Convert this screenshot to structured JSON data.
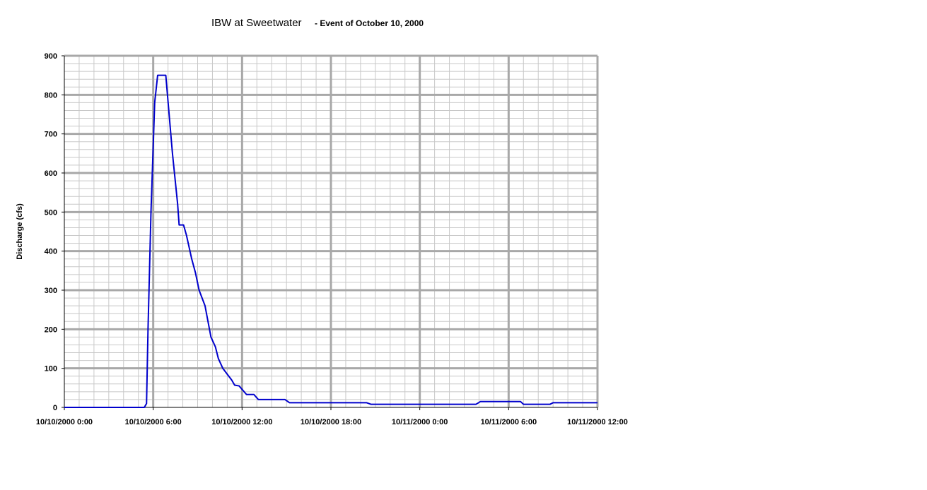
{
  "chart_data": {
    "type": "line",
    "title": "IBW at Sweetwater",
    "subtitle": "- Event of October 10, 2000",
    "xlabel": "",
    "ylabel": "Discharge (cfs)",
    "ylim": [
      0,
      900
    ],
    "y_ticks": [
      0,
      100,
      200,
      300,
      400,
      500,
      600,
      700,
      800,
      900
    ],
    "x_range_hours": [
      0,
      36
    ],
    "x_ticks": [
      {
        "hour": 0,
        "label": "10/10/2000 0:00"
      },
      {
        "hour": 6,
        "label": "10/10/2000 6:00"
      },
      {
        "hour": 12,
        "label": "10/10/2000 12:00"
      },
      {
        "hour": 18,
        "label": "10/10/2000 18:00"
      },
      {
        "hour": 24,
        "label": "10/11/2000 0:00"
      },
      {
        "hour": 30,
        "label": "10/11/2000 6:00"
      },
      {
        "hour": 36,
        "label": "10/11/2000 12:00"
      }
    ],
    "grid": true,
    "legend": "none",
    "series": [
      {
        "color": "#0000cc",
        "points": [
          [
            0,
            0
          ],
          [
            5.4,
            0
          ],
          [
            5.55,
            10
          ],
          [
            5.65,
            200
          ],
          [
            5.85,
            500
          ],
          [
            6.1,
            780
          ],
          [
            6.3,
            850
          ],
          [
            6.85,
            850
          ],
          [
            7.3,
            650
          ],
          [
            7.65,
            520
          ],
          [
            7.75,
            467
          ],
          [
            8.05,
            467
          ],
          [
            8.25,
            440
          ],
          [
            8.6,
            380
          ],
          [
            8.85,
            345
          ],
          [
            9.1,
            300
          ],
          [
            9.5,
            260
          ],
          [
            9.9,
            180
          ],
          [
            10.2,
            155
          ],
          [
            10.4,
            125
          ],
          [
            10.7,
            100
          ],
          [
            11.0,
            85
          ],
          [
            11.3,
            70
          ],
          [
            11.5,
            57
          ],
          [
            11.8,
            55
          ],
          [
            12.3,
            33
          ],
          [
            12.8,
            33
          ],
          [
            13.1,
            20
          ],
          [
            14.9,
            20
          ],
          [
            15.2,
            12
          ],
          [
            20.4,
            12
          ],
          [
            20.7,
            8
          ],
          [
            27.8,
            8
          ],
          [
            28.1,
            15
          ],
          [
            30.8,
            15
          ],
          [
            31.0,
            8
          ],
          [
            32.8,
            8
          ],
          [
            33.0,
            12
          ],
          [
            36.0,
            12
          ]
        ]
      }
    ]
  }
}
